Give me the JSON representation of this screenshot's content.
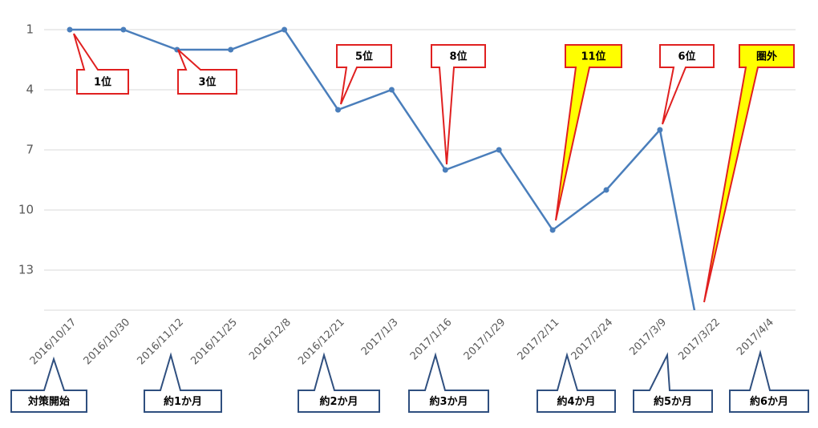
{
  "chart_data": {
    "type": "line",
    "categories": [
      "2016/10/17",
      "2016/10/30",
      "2016/11/12",
      "2016/11/25",
      "2016/12/8",
      "2016/12/21",
      "2017/1/3",
      "2017/1/16",
      "2017/1/29",
      "2017/2/11",
      "2017/2/24",
      "2017/3/9",
      "2017/3/22",
      "2017/4/4"
    ],
    "series": [
      {
        "color": "#4a7ebb",
        "values": [
          1,
          1,
          2,
          2,
          1,
          5,
          4,
          8,
          7,
          11,
          9,
          6,
          20,
          null
        ]
      }
    ],
    "ylim": [
      1,
      15
    ],
    "y_reversed": true,
    "yticks": [
      1,
      4,
      7,
      10,
      13
    ],
    "grid": true,
    "rank_callouts": [
      {
        "text": "1位",
        "highlight": false
      },
      {
        "text": "3位",
        "highlight": false
      },
      {
        "text": "5位",
        "highlight": false
      },
      {
        "text": "8位",
        "highlight": false
      },
      {
        "text": "11位",
        "highlight": true
      },
      {
        "text": "6位",
        "highlight": false
      },
      {
        "text": "圏外",
        "highlight": true
      }
    ],
    "period_callouts": [
      "対策開始",
      "約1か月",
      "約2か月",
      "約3か月",
      "約4か月",
      "約5か月",
      "約6か月"
    ]
  }
}
